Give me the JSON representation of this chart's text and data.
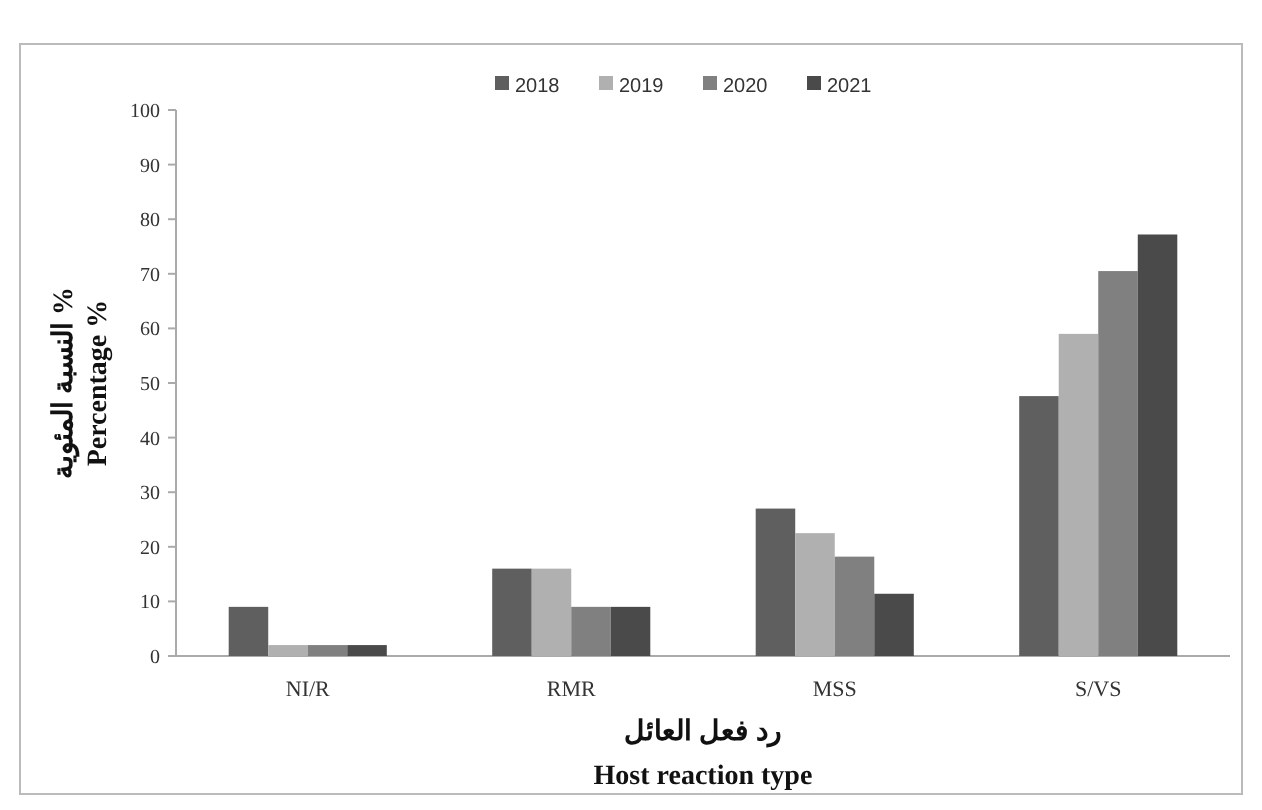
{
  "chart_data": {
    "type": "bar",
    "xlabel": "رد فعل العائل\nHost reaction type",
    "ylabel": "النسبة المئوية %\nPercentage %",
    "categories": [
      "NI/R",
      "RMR",
      "MSS",
      "S/VS"
    ],
    "series": [
      {
        "name": "2018",
        "color": "#5f5f5f",
        "values": [
          9,
          16,
          27,
          47.6
        ]
      },
      {
        "name": "2019",
        "color": "#b0b0b0",
        "values": [
          2,
          16,
          22.5,
          59
        ]
      },
      {
        "name": "2020",
        "color": "#808080",
        "values": [
          2,
          9,
          18.2,
          70.5
        ]
      },
      {
        "name": "2021",
        "color": "#4a4a4a",
        "values": [
          2,
          9,
          11.4,
          77.2
        ]
      }
    ],
    "ylim": [
      0,
      100
    ],
    "yticks": [
      0,
      10,
      20,
      30,
      40,
      50,
      60,
      70,
      80,
      90,
      100
    ],
    "legend": "top",
    "grid": false
  }
}
